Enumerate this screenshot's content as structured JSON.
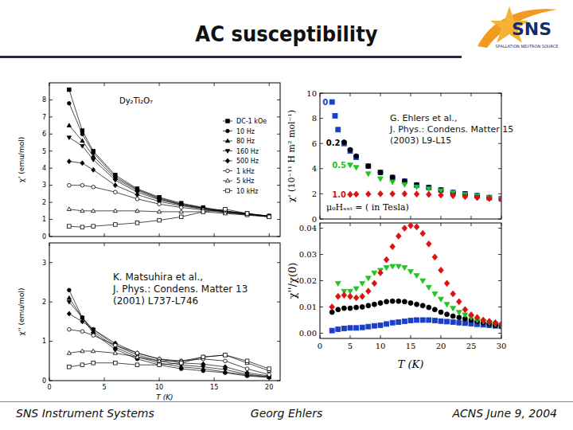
{
  "slide": {
    "title": "AC susceptibility",
    "logo": {
      "text": "SNS",
      "subtitle": "SPALLATION NEUTRON SOURCE"
    },
    "citations": [
      [
        "K. Matsuhira et al.,",
        "J. Phys.: Condens. Matter 13",
        "(2001) L737-L746"
      ],
      [
        "G. Ehlers et al.,",
        "J. Phys.: Condens. Matter 15",
        "(2003) L9-L15"
      ]
    ],
    "footer": [
      "SNS Instrument Systems",
      "Georg Ehlers",
      "ACNS  June 9, 2004"
    ]
  },
  "chart_data": [
    {
      "type": "line",
      "title": "Dy₂Ti₂O₇",
      "y_label": "χ' (emu/mol)",
      "x": [
        1.8,
        3,
        4,
        6,
        8,
        10,
        12,
        14,
        16,
        18,
        20
      ],
      "xlim": [
        0,
        21
      ],
      "xticks": [
        0,
        5,
        10,
        15,
        20
      ],
      "ylim": [
        0,
        9
      ],
      "yticks": [
        0,
        1,
        2,
        3,
        4,
        5,
        6,
        7,
        8
      ],
      "tick_labels": "y",
      "legend": "right",
      "grid": false,
      "series": [
        {
          "name": "DC-1 kOe",
          "color": "#000000",
          "marker": "square",
          "values": [
            8.6,
            6.2,
            5.0,
            3.6,
            2.8,
            2.3,
            1.95,
            1.7,
            1.5,
            1.35,
            1.2
          ]
        },
        {
          "name": "10 Hz",
          "color": "#000000",
          "marker": "circle",
          "values": [
            7.8,
            6.0,
            4.9,
            3.5,
            2.75,
            2.25,
            1.9,
            1.68,
            1.48,
            1.33,
            1.2
          ]
        },
        {
          "name": "80 Hz",
          "color": "#000000",
          "marker": "triangle",
          "values": [
            6.5,
            5.6,
            4.7,
            3.4,
            2.7,
            2.2,
            1.88,
            1.65,
            1.47,
            1.32,
            1.19
          ]
        },
        {
          "name": "160 Hz",
          "color": "#000000",
          "marker": "triangle-down",
          "values": [
            5.8,
            5.3,
            4.5,
            3.3,
            2.6,
            2.15,
            1.85,
            1.63,
            1.45,
            1.31,
            1.18
          ]
        },
        {
          "name": "500 Hz",
          "color": "#000000",
          "marker": "diamond",
          "values": [
            4.4,
            4.3,
            3.9,
            3.0,
            2.45,
            2.05,
            1.8,
            1.6,
            1.43,
            1.3,
            1.17
          ]
        },
        {
          "name": "1 kHz",
          "color": "#000000",
          "marker": "open-circle",
          "values": [
            3.0,
            3.0,
            2.9,
            2.6,
            2.2,
            1.9,
            1.7,
            1.55,
            1.4,
            1.28,
            1.16
          ]
        },
        {
          "name": "5 kHz",
          "color": "#000000",
          "marker": "open-triangle",
          "values": [
            1.6,
            1.5,
            1.5,
            1.5,
            1.5,
            1.45,
            1.45,
            1.45,
            1.35,
            1.25,
            1.15
          ]
        },
        {
          "name": "10 kHz",
          "color": "#000000",
          "marker": "open-square",
          "values": [
            0.6,
            0.55,
            0.6,
            0.7,
            0.8,
            0.95,
            1.15,
            1.45,
            1.6,
            1.35,
            1.15
          ]
        }
      ]
    },
    {
      "type": "line",
      "x_label": "T (K)",
      "y_label": "χ'' (emu/mol)",
      "x": [
        1.8,
        3,
        4,
        6,
        8,
        10,
        12,
        14,
        16,
        18,
        20
      ],
      "xlim": [
        0,
        21
      ],
      "xticks": [
        0,
        5,
        10,
        15,
        20
      ],
      "ylim": [
        0,
        3.5
      ],
      "yticks": [
        0,
        1,
        2,
        3
      ],
      "grid": false,
      "series": [
        {
          "color": "#000000",
          "marker": "circle",
          "values": [
            2.3,
            1.6,
            1.2,
            0.8,
            0.55,
            0.4,
            0.3,
            0.25,
            0.2,
            0.12,
            0.08
          ]
        },
        {
          "color": "#000000",
          "marker": "triangle",
          "values": [
            2.1,
            1.6,
            1.25,
            0.85,
            0.6,
            0.45,
            0.35,
            0.3,
            0.22,
            0.14,
            0.09
          ]
        },
        {
          "color": "#000000",
          "marker": "triangle-down",
          "values": [
            2.0,
            1.6,
            1.3,
            0.9,
            0.65,
            0.5,
            0.4,
            0.35,
            0.28,
            0.16,
            0.1
          ]
        },
        {
          "color": "#000000",
          "marker": "diamond",
          "values": [
            1.7,
            1.5,
            1.3,
            0.95,
            0.7,
            0.55,
            0.45,
            0.42,
            0.35,
            0.2,
            0.12
          ]
        },
        {
          "color": "#000000",
          "marker": "open-circle",
          "values": [
            1.3,
            1.25,
            1.15,
            0.9,
            0.7,
            0.55,
            0.5,
            0.55,
            0.5,
            0.3,
            0.15
          ]
        },
        {
          "color": "#000000",
          "marker": "open-triangle",
          "values": [
            0.7,
            0.75,
            0.75,
            0.7,
            0.6,
            0.5,
            0.5,
            0.6,
            0.65,
            0.45,
            0.25
          ]
        },
        {
          "color": "#000000",
          "marker": "open-square",
          "values": [
            0.35,
            0.4,
            0.45,
            0.45,
            0.4,
            0.4,
            0.45,
            0.6,
            0.65,
            0.5,
            0.3
          ]
        }
      ]
    },
    {
      "type": "scatter",
      "y_label": "χ' (10⁻¹¹ H m² mol⁻¹)",
      "annotations": [
        "μ₀Hₑₓₜ = ( in Tesla)"
      ],
      "x": [
        2,
        2.5,
        3,
        4,
        5,
        6,
        8,
        10,
        12,
        14,
        16,
        18,
        20,
        22,
        24,
        26,
        28,
        30
      ],
      "xlim": [
        0,
        30
      ],
      "xticks": [
        0,
        5,
        10,
        15,
        20,
        25,
        30
      ],
      "ylim": [
        0,
        10
      ],
      "yticks": [
        0,
        2,
        4,
        6,
        8,
        10
      ],
      "tick_labels": "y",
      "grid": false,
      "series": [
        {
          "name": "0",
          "color": "#1a3ec8",
          "marker": "square",
          "values": [
            9.3,
            8.2,
            7.1,
            6.0,
            5.4,
            4.9,
            4.2,
            3.7,
            3.3,
            3.0,
            2.7,
            2.5,
            2.3,
            2.1,
            2.0,
            1.85,
            1.7,
            1.6
          ]
        },
        {
          "name": "0.2",
          "color": "#000000",
          "marker": "circle",
          "values": [
            null,
            null,
            null,
            6.1,
            5.5,
            5.0,
            4.2,
            3.7,
            3.3,
            3.0,
            2.7,
            2.5,
            2.3,
            2.1,
            2.0,
            1.85,
            1.7,
            1.6
          ]
        },
        {
          "name": "0.5",
          "color": "#22c422",
          "marker": "triangle-down",
          "values": [
            null,
            null,
            null,
            null,
            4.3,
            4.1,
            3.6,
            3.2,
            2.95,
            2.75,
            2.55,
            2.4,
            2.25,
            2.1,
            1.95,
            1.85,
            1.7,
            1.6
          ]
        },
        {
          "name": "1.0",
          "color": "#dd1111",
          "marker": "diamond",
          "values": [
            null,
            null,
            null,
            null,
            1.95,
            1.97,
            1.98,
            2.0,
            2.0,
            2.0,
            1.98,
            1.95,
            1.9,
            1.85,
            1.78,
            1.7,
            1.62,
            1.55
          ]
        }
      ]
    },
    {
      "type": "scatter",
      "x_label": "T (K)",
      "y_label": "χ''/χ(0)",
      "x": [
        2,
        3,
        4,
        5,
        6,
        7,
        8,
        9,
        10,
        11,
        12,
        13,
        14,
        15,
        16,
        17,
        18,
        19,
        20,
        21,
        22,
        23,
        24,
        25,
        26,
        27,
        28,
        29,
        30
      ],
      "xlim": [
        0,
        30
      ],
      "xticks": [
        0,
        5,
        10,
        15,
        20,
        25,
        30
      ],
      "ylim": [
        -0.002,
        0.042
      ],
      "yticks": [
        {
          "value": 0,
          "label": "0.00"
        },
        0.01,
        0.02,
        0.03,
        0.04
      ],
      "grid": false,
      "series": [
        {
          "color": "#1a3ec8",
          "marker": "square",
          "values": [
            0.001,
            0.0015,
            0.0018,
            0.002,
            0.002,
            0.0022,
            0.0025,
            0.0028,
            0.003,
            0.0035,
            0.004,
            0.0042,
            0.0045,
            0.0048,
            0.005,
            0.005,
            0.005,
            0.0048,
            0.0046,
            0.0044,
            0.0042,
            0.004,
            0.0038,
            0.0036,
            0.0034,
            0.0032,
            0.003,
            0.0028,
            0.0026
          ]
        },
        {
          "color": "#000000",
          "marker": "circle",
          "values": [
            0.008,
            0.009,
            0.0095,
            0.0095,
            0.0098,
            0.01,
            0.0105,
            0.011,
            0.0115,
            0.012,
            0.0122,
            0.0122,
            0.012,
            0.0115,
            0.011,
            0.0105,
            0.0098,
            0.009,
            0.008,
            0.0072,
            0.0065,
            0.006,
            0.0055,
            0.005,
            0.0045,
            0.004,
            0.0035,
            0.003,
            0.0028
          ]
        },
        {
          "color": "#22c422",
          "marker": "triangle-down",
          "values": [
            null,
            0.019,
            0.016,
            0.016,
            0.017,
            0.019,
            0.021,
            0.023,
            0.024,
            0.025,
            0.0255,
            0.0255,
            0.025,
            0.0235,
            0.022,
            0.02,
            0.0175,
            0.015,
            0.013,
            0.011,
            0.0095,
            0.008,
            0.007,
            0.006,
            0.005,
            0.0045,
            0.004,
            0.0035,
            0.003
          ]
        },
        {
          "color": "#dd1111",
          "marker": "diamond",
          "values": [
            0.01,
            0.014,
            0.0145,
            0.014,
            0.0135,
            0.014,
            0.016,
            0.019,
            0.023,
            0.028,
            0.033,
            0.037,
            0.04,
            0.041,
            0.0405,
            0.038,
            0.034,
            0.029,
            0.024,
            0.019,
            0.015,
            0.012,
            0.009,
            0.007,
            0.006,
            0.005,
            0.0045,
            0.004,
            0.0035
          ]
        }
      ]
    }
  ]
}
